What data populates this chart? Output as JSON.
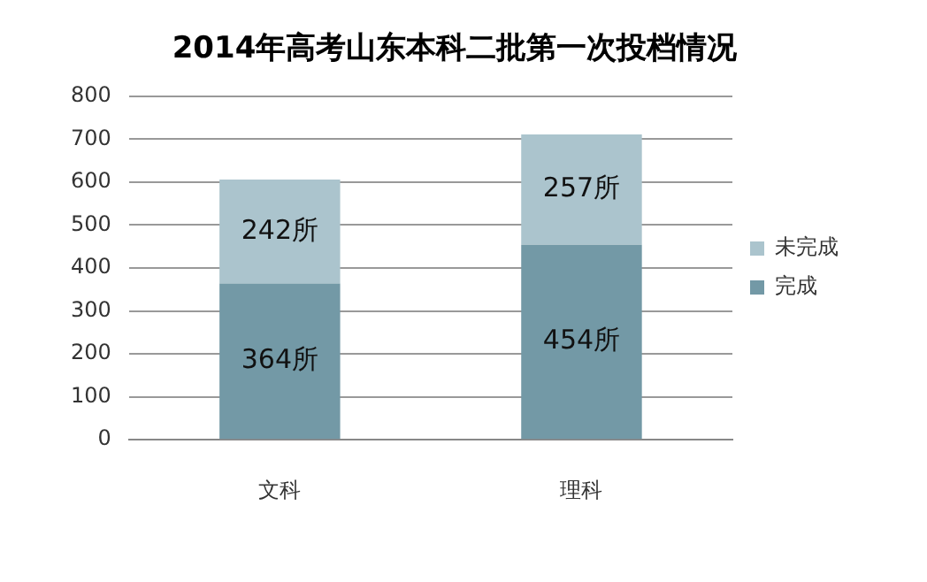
{
  "chart_data": {
    "type": "bar",
    "title": "2014年高考山东本科二批第一次投档情况",
    "categories": [
      "文科",
      "理科"
    ],
    "stacked": true,
    "series": [
      {
        "name": "完成",
        "color": "#7399a6",
        "values": [
          364,
          454
        ],
        "value_labels": [
          "364所",
          "454所"
        ]
      },
      {
        "name": "未完成",
        "color": "#abc4cd",
        "values": [
          242,
          257
        ],
        "value_labels": [
          "242所",
          "257所"
        ]
      }
    ],
    "ylim": [
      0,
      800
    ],
    "yticks": [
      0,
      100,
      200,
      300,
      400,
      500,
      600,
      700,
      800
    ],
    "grid": "y",
    "legend": "right"
  }
}
